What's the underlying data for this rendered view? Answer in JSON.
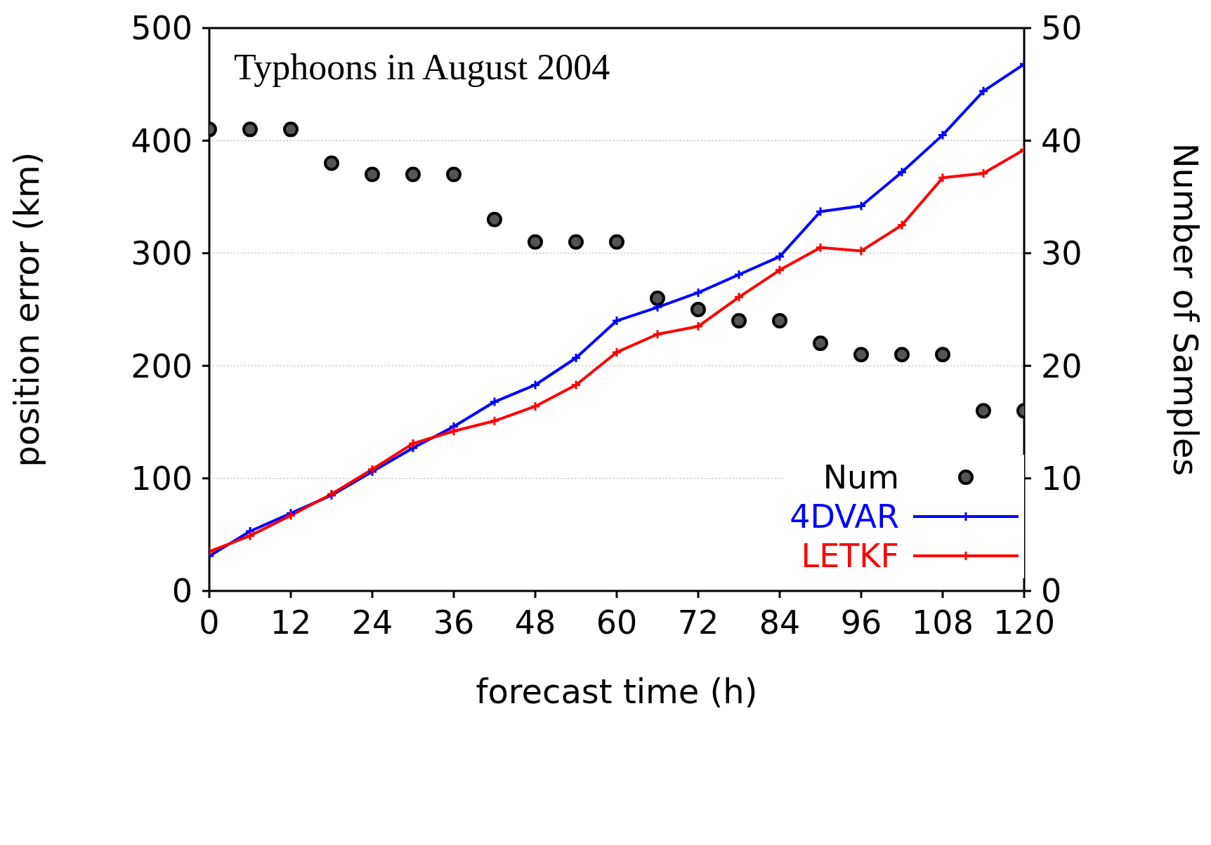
{
  "chart_data": {
    "type": "line",
    "title": "Typhoons in August 2004",
    "xlabel": "forecast time (h)",
    "ylabel": "position error (km)",
    "y2label": "Number of Samples",
    "x": [
      0,
      6,
      12,
      18,
      24,
      30,
      36,
      42,
      48,
      54,
      60,
      66,
      72,
      78,
      84,
      90,
      96,
      102,
      108,
      114,
      120
    ],
    "series": [
      {
        "name": "Num",
        "type": "scatter",
        "axis": "y2",
        "color": "#000000",
        "marker": "circle",
        "values": [
          41,
          41,
          41,
          38,
          37,
          37,
          37,
          33,
          31,
          31,
          31,
          26,
          25,
          24,
          24,
          22,
          21,
          21,
          21,
          16,
          16
        ]
      },
      {
        "name": "4DVAR",
        "type": "line",
        "color": "#0000ff",
        "marker": "cross",
        "values": [
          31,
          53,
          69,
          85,
          106,
          127,
          146,
          168,
          183,
          207,
          240,
          252,
          265,
          281,
          297,
          337,
          342,
          372,
          405,
          444,
          468
        ]
      },
      {
        "name": "LETKF",
        "type": "line",
        "color": "#ff0000",
        "marker": "cross",
        "values": [
          35,
          49,
          67,
          86,
          108,
          131,
          142,
          151,
          164,
          183,
          212,
          228,
          235,
          261,
          285,
          305,
          302,
          325,
          367,
          371,
          392
        ]
      }
    ],
    "xlim": [
      0,
      120
    ],
    "xticks": [
      0,
      12,
      24,
      36,
      48,
      60,
      72,
      84,
      96,
      108,
      120
    ],
    "ylim": [
      0,
      500
    ],
    "yticks": [
      0,
      100,
      200,
      300,
      400,
      500
    ],
    "y2lim": [
      0,
      50
    ],
    "y2ticks": [
      0,
      10,
      20,
      30,
      40,
      50
    ],
    "grid": "y",
    "legend": "bottom right",
    "line_style": "solid"
  }
}
